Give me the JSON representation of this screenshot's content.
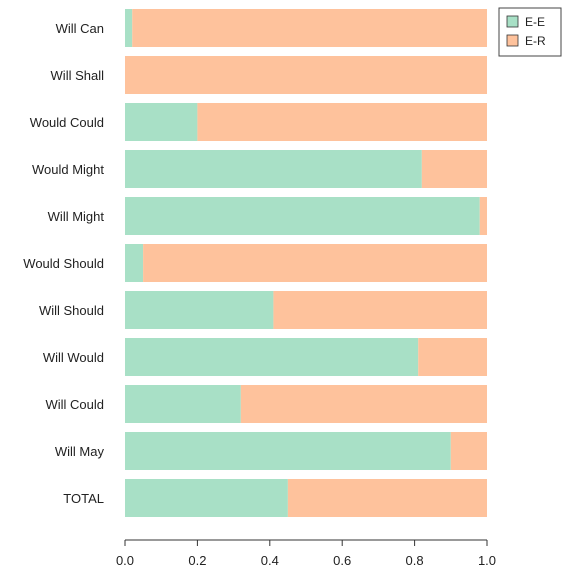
{
  "chart_data": {
    "type": "bar",
    "orientation": "horizontal",
    "stacked": true,
    "categories": [
      "Will Can",
      "Will Shall",
      "Would Could",
      "Would Might",
      "Will Might",
      "Would Should",
      "Will Should",
      "Will Would",
      "Will Could",
      "Will May",
      "TOTAL"
    ],
    "series": [
      {
        "name": "E-E",
        "color": "#a8e0c6",
        "values": [
          0.02,
          0.0,
          0.2,
          0.82,
          0.98,
          0.05,
          0.41,
          0.81,
          0.32,
          0.9,
          0.45
        ]
      },
      {
        "name": "E-R",
        "color": "#fec29c",
        "values": [
          0.98,
          1.0,
          0.8,
          0.18,
          0.02,
          0.95,
          0.59,
          0.19,
          0.68,
          0.1,
          0.55
        ]
      }
    ],
    "xlim": [
      0,
      1
    ],
    "xticks": [
      "0.0",
      "0.2",
      "0.4",
      "0.6",
      "0.8",
      "1.0"
    ],
    "title": "",
    "xlabel": "",
    "ylabel": "",
    "legend_position": "top-right",
    "grid": false
  }
}
